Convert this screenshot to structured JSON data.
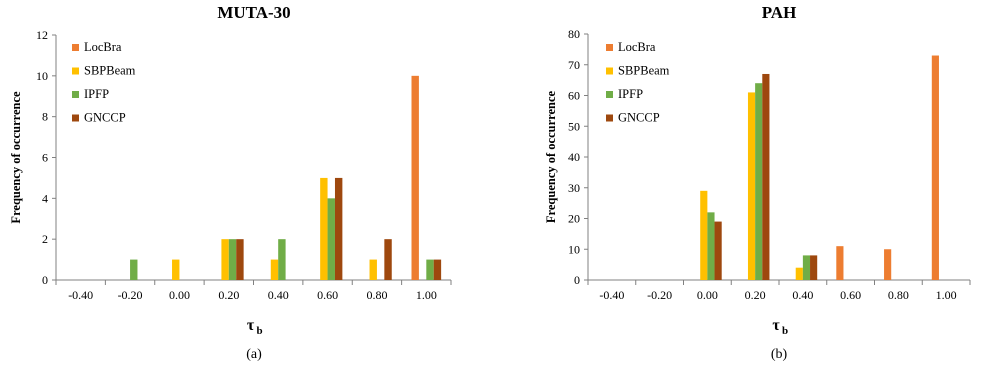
{
  "chart_data": [
    {
      "type": "bar",
      "title": "MUTA-30",
      "xlabel": "τ",
      "xlabel_sub": "b",
      "ylabel": "Frequency of occurrence",
      "caption": "(a)",
      "categories": [
        "-0.40",
        "-0.20",
        "0.00",
        "0.20",
        "0.40",
        "0.60",
        "0.80",
        "1.00"
      ],
      "ylim": [
        0,
        12
      ],
      "yticks": [
        "0",
        "2",
        "4",
        "6",
        "8",
        "10",
        "12"
      ],
      "legend_position": "top-left",
      "grid": false,
      "series": [
        {
          "name": "LocBra",
          "color": "#ED7D31",
          "values": [
            0,
            0,
            0,
            0,
            0,
            0,
            0,
            10
          ]
        },
        {
          "name": "SBPBeam",
          "color": "#FFC000",
          "values": [
            0,
            0,
            1,
            2,
            1,
            5,
            1,
            0
          ]
        },
        {
          "name": "IPFP",
          "color": "#70AD47",
          "values": [
            0,
            1,
            0,
            2,
            2,
            4,
            0,
            1
          ]
        },
        {
          "name": "GNCCP",
          "color": "#9E480E",
          "values": [
            0,
            0,
            0,
            2,
            0,
            5,
            2,
            1
          ]
        }
      ]
    },
    {
      "type": "bar",
      "title": "PAH",
      "xlabel": "τ",
      "xlabel_sub": "b",
      "ylabel": "Frequency of occurrence",
      "caption": "(b)",
      "categories": [
        "-0.40",
        "-0.20",
        "0.00",
        "0.20",
        "0.40",
        "0.60",
        "0.80",
        "1.00"
      ],
      "ylim": [
        0,
        80
      ],
      "yticks": [
        "0",
        "10",
        "20",
        "30",
        "40",
        "50",
        "60",
        "70",
        "80"
      ],
      "legend_position": "top-left",
      "grid": false,
      "series": [
        {
          "name": "LocBra",
          "color": "#ED7D31",
          "values": [
            0,
            0,
            0,
            0,
            0,
            11,
            10,
            73
          ]
        },
        {
          "name": "SBPBeam",
          "color": "#FFC000",
          "values": [
            0,
            0,
            29,
            61,
            4,
            0,
            0,
            0
          ]
        },
        {
          "name": "IPFP",
          "color": "#70AD47",
          "values": [
            0,
            0,
            22,
            64,
            8,
            0,
            0,
            0
          ]
        },
        {
          "name": "GNCCP",
          "color": "#9E480E",
          "values": [
            0,
            0,
            19,
            67,
            8,
            0,
            0,
            0
          ]
        }
      ]
    }
  ]
}
